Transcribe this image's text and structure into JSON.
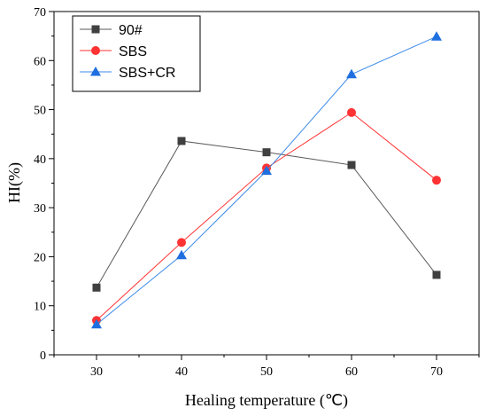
{
  "chart_data": {
    "type": "line",
    "xlabel": "Healing temperature (℃)",
    "ylabel": "HI(%)",
    "x": [
      30,
      40,
      50,
      60,
      70
    ],
    "xlim": [
      25,
      75
    ],
    "ylim": [
      0,
      70
    ],
    "xticks": [
      "30",
      "40",
      "50",
      "60",
      "70"
    ],
    "yticks": [
      "0",
      "10",
      "20",
      "30",
      "40",
      "50",
      "60",
      "70"
    ],
    "grid": false,
    "legend_position": "top-left",
    "series": [
      {
        "name": "90#",
        "marker": "square",
        "color": "#404040",
        "line_color": "#5a5a5a",
        "values": [
          13.7,
          43.6,
          41.3,
          38.7,
          16.3
        ]
      },
      {
        "name": "SBS",
        "marker": "circle",
        "color": "#ff3333",
        "line_color": "#ff3333",
        "values": [
          7.0,
          22.9,
          38.1,
          49.4,
          35.6
        ]
      },
      {
        "name": "SBS+CR",
        "marker": "triangle",
        "color": "#1f6fe0",
        "line_color": "#3c8ae8",
        "values": [
          6.2,
          20.3,
          37.5,
          57.2,
          64.9
        ]
      }
    ]
  }
}
